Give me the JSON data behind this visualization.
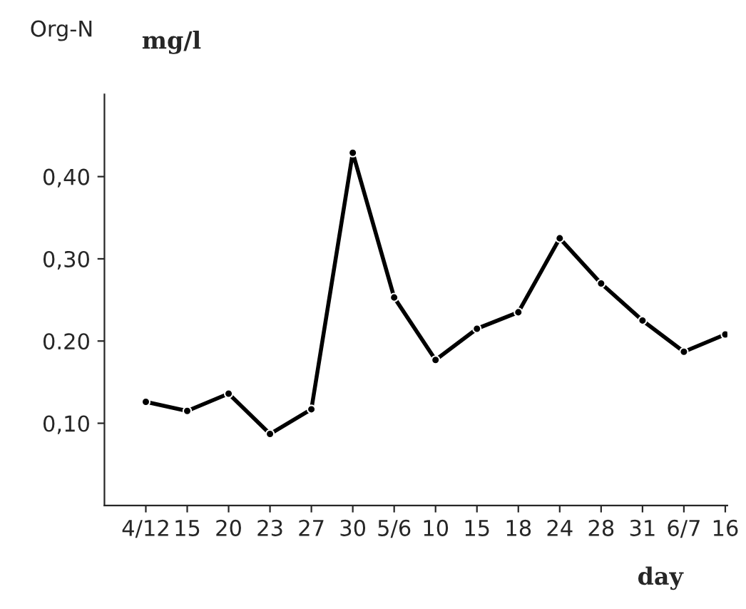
{
  "chart_data": {
    "type": "line",
    "title": "Org-N",
    "ylabel": "mg/l",
    "xlabel": "day",
    "categories": [
      "4/12",
      "15",
      "20",
      "23",
      "27",
      "30",
      "5/6",
      "10",
      "15",
      "18",
      "24",
      "28",
      "31",
      "6/7",
      "16"
    ],
    "series": [
      {
        "color": "#000000",
        "values": [
          0.126,
          0.115,
          0.136,
          0.087,
          0.117,
          0.429,
          0.253,
          0.177,
          0.215,
          0.235,
          0.325,
          0.27,
          0.225,
          0.187,
          0.208
        ]
      }
    ],
    "ylim": [
      0,
      0.5
    ],
    "yticks": [
      {
        "value": 0.1,
        "label": "0,10"
      },
      {
        "value": 0.2,
        "label": "0.20"
      },
      {
        "value": 0.3,
        "label": "0,30"
      },
      {
        "value": 0.4,
        "label": "0,40"
      }
    ],
    "grid": false,
    "legend": false,
    "marker": "circle",
    "line_style": "solid"
  }
}
